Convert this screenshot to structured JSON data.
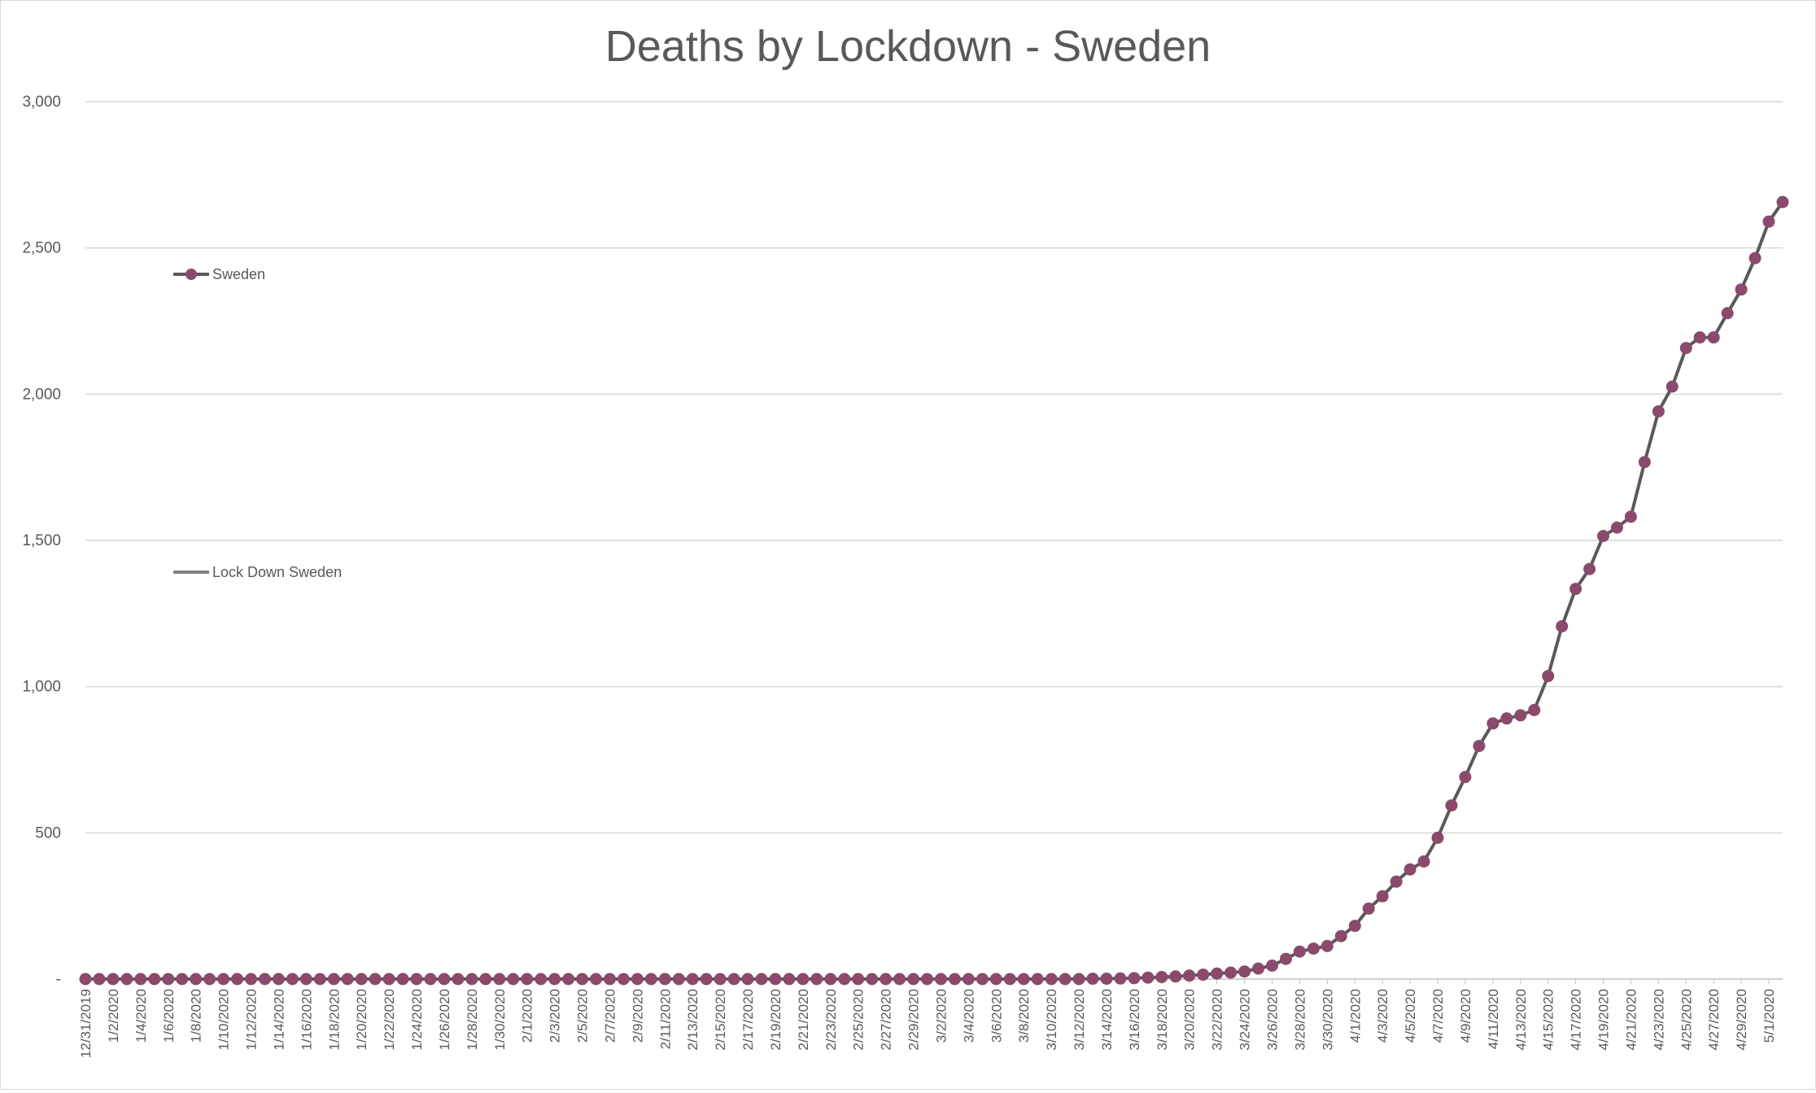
{
  "chart_data": {
    "type": "line",
    "title": "Deaths by Lockdown - Sweden",
    "xlabel": "",
    "ylabel": "",
    "ylim": [
      0,
      3000
    ],
    "yticks": [
      {
        "value": 0,
        "label": "-"
      },
      {
        "value": 500,
        "label": "500"
      },
      {
        "value": 1000,
        "label": "1,000"
      },
      {
        "value": 1500,
        "label": "1,500"
      },
      {
        "value": 2000,
        "label": "2,000"
      },
      {
        "value": 2500,
        "label": "2,500"
      },
      {
        "value": 3000,
        "label": "3,000"
      }
    ],
    "grid": true,
    "legend_position": "left",
    "x_start": "2019-12-31",
    "x_end": "2020-05-02",
    "xtick_labels": [
      "12/31/2019",
      "1/2/2020",
      "1/4/2020",
      "1/6/2020",
      "1/8/2020",
      "1/10/2020",
      "1/12/2020",
      "1/14/2020",
      "1/16/2020",
      "1/18/2020",
      "1/20/2020",
      "1/22/2020",
      "1/24/2020",
      "1/26/2020",
      "1/28/2020",
      "1/30/2020",
      "2/1/2020",
      "2/3/2020",
      "2/5/2020",
      "2/7/2020",
      "2/9/2020",
      "2/11/2020",
      "2/13/2020",
      "2/15/2020",
      "2/17/2020",
      "2/19/2020",
      "2/21/2020",
      "2/23/2020",
      "2/25/2020",
      "2/27/2020",
      "2/29/2020",
      "3/2/2020",
      "3/4/2020",
      "3/6/2020",
      "3/8/2020",
      "3/10/2020",
      "3/12/2020",
      "3/14/2020",
      "3/16/2020",
      "3/18/2020",
      "3/20/2020",
      "3/22/2020",
      "3/24/2020",
      "3/26/2020",
      "3/28/2020",
      "3/30/2020",
      "4/1/2020",
      "4/3/2020",
      "4/5/2020",
      "4/7/2020",
      "4/9/2020",
      "4/11/2020",
      "4/13/2020",
      "4/15/2020",
      "4/17/2020",
      "4/19/2020",
      "4/21/2020",
      "4/23/2020",
      "4/25/2020",
      "4/27/2020",
      "4/29/2020",
      "5/1/2020"
    ],
    "series": [
      {
        "name": "Sweden",
        "color": "#595959",
        "marker_color": "#8b4a6b",
        "marker": "circle",
        "x": [
          "2019-12-31",
          "2020-01-01",
          "2020-01-02",
          "2020-01-03",
          "2020-01-04",
          "2020-01-05",
          "2020-01-06",
          "2020-01-07",
          "2020-01-08",
          "2020-01-09",
          "2020-01-10",
          "2020-01-11",
          "2020-01-12",
          "2020-01-13",
          "2020-01-14",
          "2020-01-15",
          "2020-01-16",
          "2020-01-17",
          "2020-01-18",
          "2020-01-19",
          "2020-01-20",
          "2020-01-21",
          "2020-01-22",
          "2020-01-23",
          "2020-01-24",
          "2020-01-25",
          "2020-01-26",
          "2020-01-27",
          "2020-01-28",
          "2020-01-29",
          "2020-01-30",
          "2020-01-31",
          "2020-02-01",
          "2020-02-02",
          "2020-02-03",
          "2020-02-04",
          "2020-02-05",
          "2020-02-06",
          "2020-02-07",
          "2020-02-08",
          "2020-02-09",
          "2020-02-10",
          "2020-02-11",
          "2020-02-12",
          "2020-02-13",
          "2020-02-14",
          "2020-02-15",
          "2020-02-16",
          "2020-02-17",
          "2020-02-18",
          "2020-02-19",
          "2020-02-20",
          "2020-02-21",
          "2020-02-22",
          "2020-02-23",
          "2020-02-24",
          "2020-02-25",
          "2020-02-26",
          "2020-02-27",
          "2020-02-28",
          "2020-02-29",
          "2020-03-01",
          "2020-03-02",
          "2020-03-03",
          "2020-03-04",
          "2020-03-05",
          "2020-03-06",
          "2020-03-07",
          "2020-03-08",
          "2020-03-09",
          "2020-03-10",
          "2020-03-11",
          "2020-03-12",
          "2020-03-13",
          "2020-03-14",
          "2020-03-15",
          "2020-03-16",
          "2020-03-17",
          "2020-03-18",
          "2020-03-19",
          "2020-03-20",
          "2020-03-21",
          "2020-03-22",
          "2020-03-23",
          "2020-03-24",
          "2020-03-25",
          "2020-03-26",
          "2020-03-27",
          "2020-03-28",
          "2020-03-29",
          "2020-03-30",
          "2020-03-31",
          "2020-04-01",
          "2020-04-02",
          "2020-04-03",
          "2020-04-04",
          "2020-04-05",
          "2020-04-06",
          "2020-04-07",
          "2020-04-08",
          "2020-04-09",
          "2020-04-10",
          "2020-04-11",
          "2020-04-12",
          "2020-04-13",
          "2020-04-14",
          "2020-04-15",
          "2020-04-16",
          "2020-04-17",
          "2020-04-18",
          "2020-04-19",
          "2020-04-20",
          "2020-04-21",
          "2020-04-22",
          "2020-04-23",
          "2020-04-24",
          "2020-04-25",
          "2020-04-26",
          "2020-04-27",
          "2020-04-28",
          "2020-04-29",
          "2020-04-30",
          "2020-05-01",
          "2020-05-02"
        ],
        "values": [
          0,
          0,
          0,
          0,
          0,
          0,
          0,
          0,
          0,
          0,
          0,
          0,
          0,
          0,
          0,
          0,
          0,
          0,
          0,
          0,
          0,
          0,
          0,
          0,
          0,
          0,
          0,
          0,
          0,
          0,
          0,
          0,
          0,
          0,
          0,
          0,
          0,
          0,
          0,
          0,
          0,
          0,
          0,
          0,
          0,
          0,
          0,
          0,
          0,
          0,
          0,
          0,
          0,
          0,
          0,
          0,
          0,
          0,
          0,
          0,
          0,
          0,
          0,
          0,
          0,
          0,
          0,
          0,
          0,
          0,
          0,
          0,
          0,
          1,
          1,
          2,
          3,
          5,
          7,
          9,
          12,
          15,
          19,
          22,
          26,
          36,
          46,
          69,
          94,
          104,
          113,
          147,
          182,
          241,
          283,
          333,
          375,
          402,
          483,
          594,
          691,
          797,
          874,
          891,
          902,
          920,
          1036,
          1206,
          1334,
          1402,
          1515,
          1544,
          1581,
          1768,
          1941,
          2026,
          2158,
          2194,
          2194,
          2277,
          2358,
          2465,
          2590,
          2657
        ]
      },
      {
        "name": "Lock Down Sweden",
        "color": "#808080",
        "values": []
      }
    ]
  }
}
